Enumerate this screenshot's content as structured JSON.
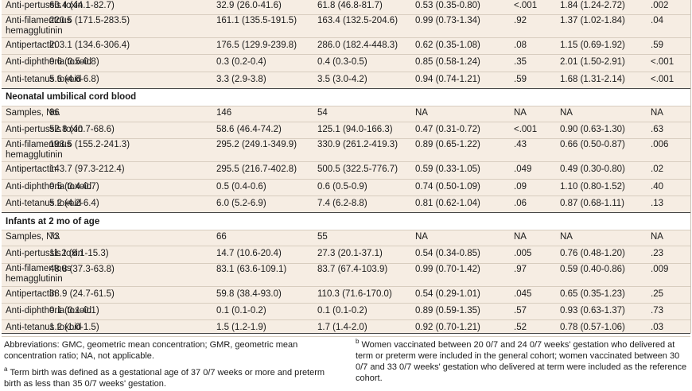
{
  "sections": [
    {
      "title": "",
      "rows": [
        {
          "label": "Anti-pertussis toxin",
          "cells": [
            "60.4 (44.1-82.7)",
            "32.9 (26.0-41.6)",
            "61.8 (46.8-81.7)",
            "0.53 (0.35-0.80)",
            "<.001",
            "1.84 (1.24-2.72)",
            ".002"
          ]
        },
        {
          "label": "Anti-filamentous hemagglutinin",
          "cells": [
            "220.5 (171.5-283.5)",
            "161.1 (135.5-191.5)",
            "163.4 (132.5-204.6)",
            "0.99 (0.73-1.34)",
            ".92",
            "1.37 (1.02-1.84)",
            ".04"
          ]
        },
        {
          "label": "Antipertactin",
          "cells": [
            "203.1 (134.6-306.4)",
            "176.5 (129.9-239.8)",
            "286.0 (182.4-448.3)",
            "0.62 (0.35-1.08)",
            ".08",
            "1.15 (0.69-1.92)",
            ".59"
          ]
        },
        {
          "label": "Anti-diphtheria toxoid",
          "cells": [
            "0.6 (0.5-0.8)",
            "0.3 (0.2-0.4)",
            "0.4 (0.3-0.5)",
            "0.85 (0.58-1.24)",
            ".35",
            "2.01 (1.50-2.91)",
            "<.001"
          ]
        },
        {
          "label": "Anti-tetanus toxoid",
          "cells": [
            "5.6 (4.6-6.8)",
            "3.3 (2.9-3.8)",
            "3.5 (3.0-4.2)",
            "0.94 (0.74-1.21)",
            ".59",
            "1.68 (1.31-2.14)",
            "<.001"
          ]
        }
      ]
    },
    {
      "title": "Neonatal umbilical cord blood",
      "rows": [
        {
          "label": "Samples, No.",
          "cells": [
            "86",
            "146",
            "54",
            "NA",
            "NA",
            "NA",
            "NA"
          ]
        },
        {
          "label": "Anti-pertussis toxin",
          "cells": [
            "52.8 (40.7-68.6)",
            "58.6 (46.4-74.2)",
            "125.1 (94.0-166.3)",
            "0.47 (0.31-0.72)",
            "<.001",
            "0.90 (0.63-1.30)",
            ".63"
          ]
        },
        {
          "label": "Anti-filamentous hemagglutinin",
          "cells": [
            "193.5 (155.2-241.3)",
            "295.2 (249.1-349.9)",
            "330.9 (261.2-419.3)",
            "0.89 (0.65-1.22)",
            ".43",
            "0.66 (0.50-0.87)",
            ".006"
          ]
        },
        {
          "label": "Antipertactin",
          "cells": [
            "143.7 (97.3-212.4)",
            "295.5 (216.7-402.8)",
            "500.5 (322.5-776.7)",
            "0.59 (0.33-1.05)",
            ".049",
            "0.49 (0.30-0.80)",
            ".02"
          ]
        },
        {
          "label": "Anti-diphtheria toxoid",
          "cells": [
            "0.5 (0.4-0.7)",
            "0.5 (0.4-0.6)",
            "0.6 (0.5-0.9)",
            "0.74 (0.50-1.09)",
            ".09",
            "1.10 (0.80-1.52)",
            ".40"
          ]
        },
        {
          "label": "Anti-tetanus toxoid",
          "cells": [
            "5.2 (4.2-6.4)",
            "6.0 (5.2-6.9)",
            "7.4 (6.2-8.8)",
            "0.81 (0.62-1.04)",
            ".06",
            "0.87 (0.68-1.11)",
            ".13"
          ]
        }
      ]
    },
    {
      "title": "Infants at 2 mo of age",
      "rows": [
        {
          "label": "Samples, No.",
          "cells": [
            "73",
            "66",
            "55",
            "NA",
            "NA",
            "NA",
            "NA"
          ]
        },
        {
          "label": "Anti-pertussis toxin",
          "cells": [
            "11.2 (8.1-15.3)",
            "14.7 (10.6-20.4)",
            "27.3 (20.1-37.1)",
            "0.54 (0.34-0.85)",
            ".005",
            "0.76 (0.48-1.20)",
            ".23"
          ]
        },
        {
          "label": "Anti-filamentous hemagglutinin",
          "cells": [
            "48.8 (37.3-63.8)",
            "83.1 (63.6-109.1)",
            "83.7 (67.4-103.9)",
            "0.99 (0.70-1.42)",
            ".97",
            "0.59 (0.40-0.86)",
            ".009"
          ]
        },
        {
          "label": "Antipertactin",
          "cells": [
            "38.9 (24.7-61.5)",
            "59.8 (38.4-93.0)",
            "110.3 (71.6-170.0)",
            "0.54 (0.29-1.01)",
            ".045",
            "0.65 (0.35-1.23)",
            ".25"
          ]
        },
        {
          "label": "Anti-diphtheria toxoid",
          "cells": [
            "0.1 (0.1-0.1)",
            "0.1 (0.1-0.2)",
            "0.1 (0.1-0.2)",
            "0.89 (0.59-1.35)",
            ".57",
            "0.93 (0.63-1.37)",
            ".73"
          ]
        },
        {
          "label": "Anti-tetanus toxoid",
          "cells": [
            "1.2 (1.0-1.5)",
            "1.5 (1.2-1.9)",
            "1.7 (1.4-2.0)",
            "0.92 (0.70-1.21)",
            ".52",
            "0.78 (0.57-1.06)",
            ".03"
          ]
        }
      ]
    }
  ],
  "footnotes": {
    "abbreviations": "Abbreviations: GMC, geometric mean concentration; GMR, geometric mean concentration ratio; NA, not applicable.",
    "a_marker": "a",
    "a_text": "Term birth was defined as a gestational age of 37 0/7 weeks or more and preterm birth as less than 35 0/7 weeks' gestation.",
    "b_marker": "b",
    "b_text": "Women vaccinated between 20 0/7 and 24 0/7 weeks' gestation who delivered at term or preterm were included in the general cohort; women vaccinated between 30 0/7 and 33 0/7 weeks' gestation who delivered at term were included as the reference cohort."
  }
}
